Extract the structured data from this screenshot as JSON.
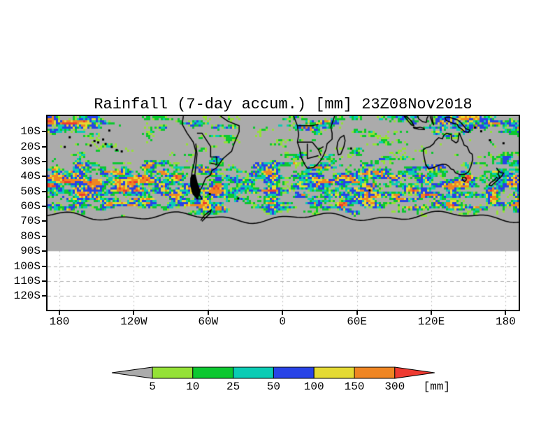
{
  "title": "Rainfall (7-day accum.) [mm] 23Z08Nov2018",
  "chart_data": {
    "type": "heatmap",
    "title": "Rainfall (7-day accum.) [mm] 23Z08Nov2018",
    "projection": "lat-lon, southern hemisphere",
    "x_axis": {
      "tick_labels": [
        "180",
        "120W",
        "60W",
        "0",
        "60E",
        "120E",
        "180"
      ],
      "tick_values_deg": [
        -180,
        -120,
        -60,
        0,
        60,
        120,
        180
      ],
      "range_deg": [
        -189.6,
        189.6
      ]
    },
    "y_axis": {
      "tick_labels": [
        "10S",
        "20S",
        "30S",
        "40S",
        "50S",
        "60S",
        "70S",
        "80S",
        "90S",
        "100S",
        "110S",
        "120S"
      ],
      "tick_values_deg": [
        -10,
        -20,
        -30,
        -40,
        -50,
        -60,
        -70,
        -80,
        -90,
        -100,
        -110,
        -120
      ],
      "range_deg": [
        0.4,
        -129.3
      ]
    },
    "colorbar": {
      "units_label": "[mm]",
      "thresholds": [
        5,
        10,
        25,
        50,
        100,
        150,
        300
      ],
      "segment_colors": [
        "#94e136",
        "#0cc830",
        "#0accb4",
        "#2843e6",
        "#e4da33",
        "#ef8522"
      ],
      "under_color": "#ababab",
      "over_color": "#ee3a31",
      "position": "bottom-center"
    },
    "background_no_data_color": "#ababab",
    "coastline_color": "#000000",
    "grid_color": "#b0b0b0",
    "grid": "dashed latitude lines and dotted longitude lines visible only south of 90S (empty white zone)",
    "field_description": "7-day accumulated rainfall raster from the equator to 90S; strongest band along the southern-ocean storm track (35S-62S) with orange/red cores, tropical rain near the top edge over the Maritime Continent, South Pacific, South America and Africa; plain gray (below 5 mm) elsewhere; Antarctica outlined near 65S-72S"
  },
  "legend": {
    "labels": [
      "5",
      "10",
      "25",
      "50",
      "100",
      "150",
      "300"
    ],
    "units": "[mm]"
  }
}
